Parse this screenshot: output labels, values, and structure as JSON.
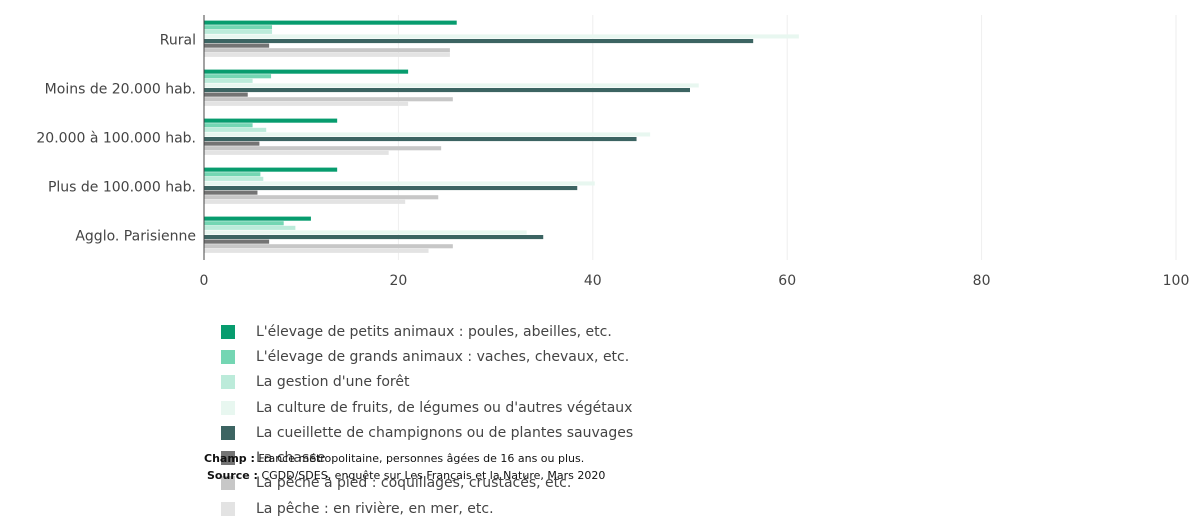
{
  "chart_data": {
    "type": "bar",
    "orientation": "horizontal",
    "categories": [
      "Rural",
      "Moins de 20.000 hab.",
      "20.000 à 100.000 hab.",
      "Plus de 100.000 hab.",
      "Agglo. Parisienne"
    ],
    "xlim": [
      0,
      100
    ],
    "xticks": [
      "0",
      "20",
      "40",
      "60",
      "80",
      "100"
    ],
    "grid": true,
    "legend_position": "bottom",
    "series": [
      {
        "name": "L'élevage de petits animaux : poules, abeilles, etc.",
        "color": "#079c6e",
        "values": [
          26,
          21,
          13.7,
          13.7,
          11
        ]
      },
      {
        "name": "L'élevage de grands animaux : vaches, chevaux, etc.",
        "color": "#74d6b3",
        "values": [
          7,
          6.9,
          5,
          5.8,
          8.2
        ]
      },
      {
        "name": "La gestion d'une forêt",
        "color": "#bcebda",
        "values": [
          7,
          5,
          6.4,
          6.1,
          9.4
        ]
      },
      {
        "name": "La culture de fruits, de légumes ou d'autres végétaux",
        "color": "#e8f7f0",
        "values": [
          61.2,
          50.9,
          45.9,
          40.2,
          33.2
        ]
      },
      {
        "name": "La cueillette de champignons ou de plantes sauvages",
        "color": "#3c6462",
        "values": [
          56.5,
          50,
          44.5,
          38.4,
          34.9
        ]
      },
      {
        "name": "La chasse",
        "color": "#747474",
        "values": [
          6.7,
          4.5,
          5.7,
          5.5,
          6.7
        ]
      },
      {
        "name": "La pêche à pied : coquillages, crustacés, etc.",
        "color": "#c7c7c7",
        "values": [
          25.3,
          25.6,
          24.4,
          24.1,
          25.6
        ]
      },
      {
        "name": "La pêche : en rivière, en mer, etc.",
        "color": "#e3e3e3",
        "values": [
          25.3,
          21,
          19,
          20.7,
          23.1
        ]
      }
    ]
  },
  "footnotes": {
    "champ_label": "Champ :",
    "champ_text": "France métropolitaine, personnes âgées de 16 ans ou plus.",
    "source_label": "Source :",
    "source_text": "CGDD/SDES, enquête sur Les Français et la Nature, Mars 2020"
  }
}
